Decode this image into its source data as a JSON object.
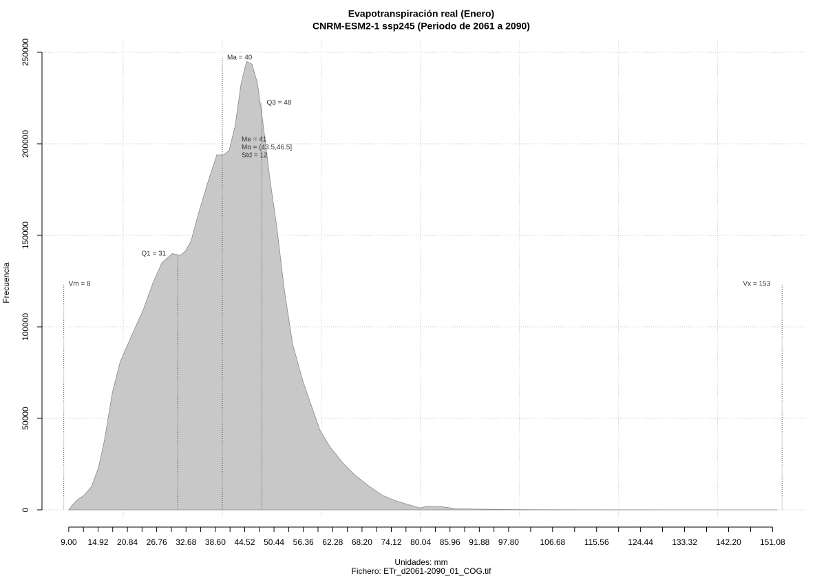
{
  "chart_data": {
    "type": "area",
    "title": "Evapotranspiración real (Enero)",
    "subtitle": "CNRM-ESM2-1 ssp245 (Periodo de 2061 a 2090)",
    "x_label": "Unidades: mm",
    "caption": "Fichero: ETr_d2061-2090_01_COG.tif",
    "y_label": "Frecuencia",
    "color": "#c8c8c8",
    "line_color": "#888888",
    "grid": true,
    "xlim": [
      3.6,
      157.7
    ],
    "ylim": [
      0,
      250000
    ],
    "yticks": [
      0,
      50000,
      100000,
      150000,
      200000,
      250000
    ],
    "xgrid": [
      20,
      40,
      60,
      80,
      100,
      120,
      140
    ],
    "xticks": [
      {
        "value": 9,
        "label": "9.00"
      },
      14.92,
      20.84,
      26.76,
      32.68,
      {
        "value": 38.6,
        "label": "38.60"
      },
      44.52,
      50.44,
      56.36,
      62.28,
      {
        "value": 68.2,
        "label": "68.20"
      },
      74.12,
      80.04,
      85.96,
      91.88,
      {
        "value": 97.8,
        "label": "97.80"
      },
      106.68,
      115.56,
      124.44,
      133.32,
      {
        "value": 142.2,
        "label": "142.20"
      },
      151.08
    ],
    "xminor": [
      11.96,
      17.88,
      23.8,
      29.72,
      35.64,
      41.56,
      47.48,
      53.4,
      59.32,
      65.24,
      71.16,
      77.08,
      83,
      88.92,
      94.84,
      102.24,
      111.12,
      120,
      128.88,
      137.76,
      146.64
    ],
    "x": [
      9.0,
      9.7,
      10.8,
      12.1,
      13.6,
      15.0,
      16.2,
      17.8,
      19.4,
      21.5,
      24.0,
      26.0,
      27.8,
      29.9,
      31.5,
      32.6,
      33.7,
      35.4,
      37.2,
      38.9,
      40.3,
      41.4,
      42.6,
      43.8,
      44.9,
      46.0,
      47.1,
      48.2,
      49.6,
      51.0,
      52.5,
      54.2,
      56.3,
      58.0,
      59.7,
      61.8,
      64.2,
      66.7,
      69.5,
      72.3,
      75.0,
      77.4,
      79.9,
      81.3,
      84.1,
      86.9,
      91.0,
      98.0,
      106.3,
      120.2,
      134.1,
      152.0
    ],
    "values": [
      0,
      2600,
      5600,
      8000,
      12800,
      23000,
      38000,
      64000,
      81000,
      94000,
      109000,
      124000,
      135000,
      140000,
      139000,
      141500,
      147000,
      164000,
      180000,
      194000,
      194000,
      196500,
      210000,
      233000,
      245000,
      243500,
      233000,
      211500,
      181000,
      154500,
      120700,
      90600,
      70000,
      56800,
      43600,
      34200,
      26000,
      19200,
      13200,
      8000,
      5000,
      3000,
      1100,
      1900,
      1800,
      700,
      400,
      200,
      60,
      20,
      10,
      0
    ],
    "markers": [
      {
        "label": "Vm = 8",
        "x": 8,
        "top": 123000,
        "side": "right"
      },
      {
        "label": "Q1 = 31",
        "x": 31,
        "top": 139500,
        "side": "left"
      },
      {
        "label": "Ma = 40",
        "x": 40,
        "top": 246600,
        "side": "right"
      },
      {
        "label": "Q3 = 48",
        "x": 48,
        "top": 222000,
        "side": "right"
      },
      {
        "label": "Vx = 153",
        "x": 153,
        "top": 123000,
        "side": "left"
      }
    ],
    "stats": [
      "Me = 41",
      "Mo = (43.5,46.5]",
      "Std = 12"
    ]
  }
}
